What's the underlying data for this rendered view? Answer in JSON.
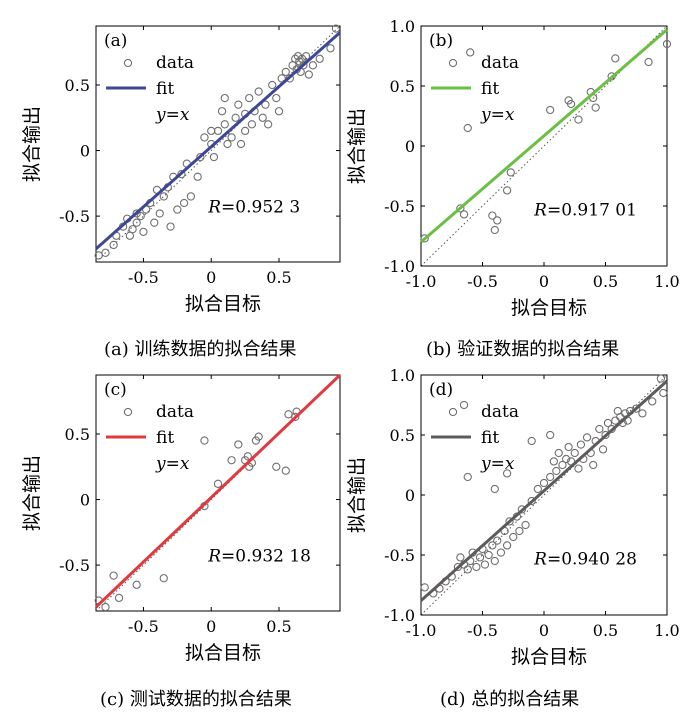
{
  "chart_data": [
    {
      "type": "scatter",
      "panel_label": "(a)",
      "caption": "(a) 训练数据的拟合结果",
      "xlabel": "拟合目标",
      "ylabel": "拟合输出",
      "xlim": [
        -0.85,
        0.95
      ],
      "ylim": [
        -0.85,
        0.95
      ],
      "xticks": [
        "-0.5",
        "0",
        "0.5"
      ],
      "yticks": [
        "-0.5",
        "0",
        "0.5"
      ],
      "xtick_values": [
        -0.5,
        0,
        0.5
      ],
      "ytick_values": [
        -0.5,
        0,
        0.5
      ],
      "fit_color": "#3d4796",
      "fit_line": [
        [
          -0.85,
          -0.75
        ],
        [
          0.95,
          0.9
        ]
      ],
      "legend": [
        "data",
        "fit",
        "y=x"
      ],
      "r_label": "R",
      "r_value": "=0.952 3",
      "points": [
        [
          -0.83,
          -0.8
        ],
        [
          -0.78,
          -0.78
        ],
        [
          -0.72,
          -0.72
        ],
        [
          -0.7,
          -0.65
        ],
        [
          -0.65,
          -0.58
        ],
        [
          -0.62,
          -0.52
        ],
        [
          -0.58,
          -0.6
        ],
        [
          -0.55,
          -0.55
        ],
        [
          -0.52,
          -0.5
        ],
        [
          -0.5,
          -0.62
        ],
        [
          -0.48,
          -0.45
        ],
        [
          -0.45,
          -0.4
        ],
        [
          -0.42,
          -0.55
        ],
        [
          -0.4,
          -0.3
        ],
        [
          -0.38,
          -0.48
        ],
        [
          -0.35,
          -0.35
        ],
        [
          -0.32,
          -0.28
        ],
        [
          -0.3,
          -0.58
        ],
        [
          -0.28,
          -0.2
        ],
        [
          -0.25,
          -0.45
        ],
        [
          -0.22,
          -0.18
        ],
        [
          -0.2,
          -0.4
        ],
        [
          -0.18,
          -0.1
        ],
        [
          -0.15,
          -0.35
        ],
        [
          -0.1,
          -0.2
        ],
        [
          -0.08,
          -0.05
        ],
        [
          -0.05,
          0.1
        ],
        [
          0,
          0.05
        ],
        [
          0.02,
          -0.05
        ],
        [
          0.05,
          0.15
        ],
        [
          0.08,
          0.3
        ],
        [
          0.1,
          0.2
        ],
        [
          0.12,
          0.05
        ],
        [
          0.15,
          0.1
        ],
        [
          0.18,
          0.25
        ],
        [
          0.2,
          0.35
        ],
        [
          0.22,
          0.05
        ],
        [
          0.25,
          0.28
        ],
        [
          0.28,
          0.4
        ],
        [
          0.3,
          0.2
        ],
        [
          0.32,
          0.3
        ],
        [
          0.35,
          0.45
        ],
        [
          0.38,
          0.25
        ],
        [
          0.4,
          0.35
        ],
        [
          0.42,
          0.2
        ],
        [
          0.45,
          0.5
        ],
        [
          0.48,
          0.4
        ],
        [
          0.5,
          0.3
        ],
        [
          0.52,
          0.55
        ],
        [
          0.55,
          0.6
        ],
        [
          0.58,
          0.55
        ],
        [
          0.6,
          0.65
        ],
        [
          0.62,
          0.7
        ],
        [
          0.63,
          0.62
        ],
        [
          0.64,
          0.72
        ],
        [
          0.65,
          0.68
        ],
        [
          0.66,
          0.6
        ],
        [
          0.67,
          0.7
        ],
        [
          0.68,
          0.65
        ],
        [
          0.7,
          0.72
        ],
        [
          0.72,
          0.58
        ],
        [
          0.75,
          0.65
        ],
        [
          0.8,
          0.7
        ],
        [
          0.88,
          0.78
        ],
        [
          0.92,
          0.93
        ],
        [
          -0.6,
          -0.65
        ],
        [
          -0.55,
          -0.48
        ],
        [
          0.0,
          0.15
        ],
        [
          0.1,
          0.4
        ],
        [
          0.25,
          0.15
        ]
      ]
    },
    {
      "type": "scatter",
      "panel_label": "(b)",
      "caption": "(b) 验证数据的拟合结果",
      "xlabel": "拟合目标",
      "ylabel": "拟合输出",
      "xlim": [
        -1,
        1
      ],
      "ylim": [
        -1,
        1
      ],
      "xticks": [
        "-1.0",
        "-0.5",
        "0",
        "0.5",
        "1.0"
      ],
      "yticks": [
        "-1.0",
        "-0.5",
        "0",
        "0.5",
        "1.0"
      ],
      "xtick_values": [
        -1,
        -0.5,
        0,
        0.5,
        1
      ],
      "ytick_values": [
        -1,
        -0.5,
        0,
        0.5,
        1
      ],
      "fit_color": "#6abf45",
      "fit_line": [
        [
          -1,
          -0.8
        ],
        [
          1,
          0.97
        ]
      ],
      "legend": [
        "data",
        "fit",
        "y=x"
      ],
      "r_label": "R",
      "r_value": "=0.917 01",
      "points": [
        [
          -0.97,
          -0.77
        ],
        [
          -0.68,
          -0.52
        ],
        [
          -0.65,
          -0.57
        ],
        [
          -0.62,
          0.15
        ],
        [
          -0.6,
          0.78
        ],
        [
          -0.42,
          -0.58
        ],
        [
          -0.4,
          -0.7
        ],
        [
          -0.38,
          -0.62
        ],
        [
          -0.3,
          -0.37
        ],
        [
          -0.27,
          -0.22
        ],
        [
          0.05,
          0.3
        ],
        [
          0.2,
          0.38
        ],
        [
          0.22,
          0.35
        ],
        [
          0.28,
          0.22
        ],
        [
          0.38,
          0.45
        ],
        [
          0.42,
          0.32
        ],
        [
          0.55,
          0.58
        ],
        [
          0.58,
          0.73
        ],
        [
          0.85,
          0.7
        ],
        [
          1.0,
          0.85
        ],
        [
          0.4,
          0.4
        ]
      ]
    },
    {
      "type": "scatter",
      "panel_label": "(c)",
      "caption": "(c) 测试数据的拟合结果",
      "xlabel": "拟合目标",
      "ylabel": "拟合输出",
      "xlim": [
        -0.85,
        0.95
      ],
      "ylim": [
        -0.85,
        0.95
      ],
      "xticks": [
        "-0.5",
        "0",
        "0.5"
      ],
      "yticks": [
        "-0.5",
        "0",
        "0.5"
      ],
      "xtick_values": [
        -0.5,
        0,
        0.5
      ],
      "ytick_values": [
        -0.5,
        0,
        0.5
      ],
      "fit_color": "#e0393e",
      "fit_line": [
        [
          -0.85,
          -0.82
        ],
        [
          0.95,
          0.95
        ]
      ],
      "legend": [
        "data",
        "fit",
        "y=x"
      ],
      "r_label": "R",
      "r_value": "=0.932 18",
      "points": [
        [
          -0.83,
          -0.77
        ],
        [
          -0.78,
          -0.82
        ],
        [
          -0.72,
          -0.58
        ],
        [
          -0.68,
          -0.75
        ],
        [
          -0.55,
          -0.65
        ],
        [
          -0.35,
          -0.6
        ],
        [
          -0.05,
          -0.05
        ],
        [
          0.05,
          0.12
        ],
        [
          0.15,
          0.3
        ],
        [
          0.2,
          0.42
        ],
        [
          0.25,
          0.3
        ],
        [
          0.27,
          0.33
        ],
        [
          0.28,
          0.25
        ],
        [
          0.3,
          0.28
        ],
        [
          0.33,
          0.45
        ],
        [
          0.35,
          0.48
        ],
        [
          0.48,
          0.25
        ],
        [
          0.55,
          0.22
        ],
        [
          0.57,
          0.65
        ],
        [
          0.62,
          0.63
        ],
        [
          0.63,
          0.67
        ],
        [
          -0.05,
          0.45
        ]
      ]
    },
    {
      "type": "scatter",
      "panel_label": "(d)",
      "caption": "(d) 总的拟合结果",
      "xlabel": "拟合目标",
      "ylabel": "拟合输出",
      "xlim": [
        -1,
        1
      ],
      "ylim": [
        -1,
        1
      ],
      "xticks": [
        "-1.0",
        "-0.5",
        "0",
        "0.5",
        "1.0"
      ],
      "yticks": [
        "-1.0",
        "-0.5",
        "0",
        "0.5",
        "1.0"
      ],
      "xtick_values": [
        -1,
        -0.5,
        0,
        0.5,
        1
      ],
      "ytick_values": [
        -1,
        -0.5,
        0,
        0.5,
        1
      ],
      "fit_color": "#5f5a5c",
      "fit_line": [
        [
          -1,
          -0.88
        ],
        [
          1,
          0.95
        ]
      ],
      "legend": [
        "data",
        "fit",
        "y=x"
      ],
      "r_label": "R",
      "r_value": "=0.940 28",
      "points": [
        [
          -0.97,
          -0.77
        ],
        [
          -0.9,
          -0.82
        ],
        [
          -0.85,
          -0.78
        ],
        [
          -0.8,
          -0.72
        ],
        [
          -0.75,
          -0.68
        ],
        [
          -0.7,
          -0.6
        ],
        [
          -0.68,
          -0.52
        ],
        [
          -0.65,
          -0.58
        ],
        [
          -0.62,
          -0.62
        ],
        [
          -0.6,
          -0.55
        ],
        [
          -0.58,
          -0.48
        ],
        [
          -0.55,
          -0.6
        ],
        [
          -0.52,
          -0.52
        ],
        [
          -0.5,
          -0.45
        ],
        [
          -0.48,
          -0.58
        ],
        [
          -0.45,
          -0.5
        ],
        [
          -0.42,
          -0.42
        ],
        [
          -0.4,
          -0.55
        ],
        [
          -0.38,
          -0.38
        ],
        [
          -0.35,
          -0.48
        ],
        [
          -0.32,
          -0.3
        ],
        [
          -0.3,
          -0.42
        ],
        [
          -0.28,
          -0.22
        ],
        [
          -0.25,
          -0.35
        ],
        [
          -0.22,
          -0.18
        ],
        [
          -0.2,
          -0.3
        ],
        [
          -0.18,
          -0.12
        ],
        [
          -0.15,
          -0.25
        ],
        [
          -0.1,
          -0.05
        ],
        [
          -0.05,
          0.05
        ],
        [
          0,
          0.1
        ],
        [
          0.05,
          0.15
        ],
        [
          0.08,
          0.28
        ],
        [
          0.1,
          0.2
        ],
        [
          0.12,
          0.35
        ],
        [
          0.15,
          0.25
        ],
        [
          0.18,
          0.3
        ],
        [
          0.2,
          0.4
        ],
        [
          0.22,
          0.28
        ],
        [
          0.25,
          0.35
        ],
        [
          0.28,
          0.22
        ],
        [
          0.3,
          0.42
        ],
        [
          0.32,
          0.3
        ],
        [
          0.35,
          0.48
        ],
        [
          0.38,
          0.35
        ],
        [
          0.4,
          0.25
        ],
        [
          0.42,
          0.45
        ],
        [
          0.45,
          0.55
        ],
        [
          0.48,
          0.38
        ],
        [
          0.5,
          0.5
        ],
        [
          0.52,
          0.6
        ],
        [
          0.55,
          0.55
        ],
        [
          0.58,
          0.62
        ],
        [
          0.6,
          0.7
        ],
        [
          0.62,
          0.65
        ],
        [
          0.64,
          0.6
        ],
        [
          0.66,
          0.68
        ],
        [
          0.68,
          0.62
        ],
        [
          0.7,
          0.7
        ],
        [
          0.75,
          0.72
        ],
        [
          0.8,
          0.68
        ],
        [
          0.88,
          0.78
        ],
        [
          0.95,
          0.97
        ],
        [
          0.97,
          0.85
        ],
        [
          -0.65,
          0.75
        ],
        [
          -0.62,
          0.15
        ],
        [
          -0.1,
          0.45
        ],
        [
          0.05,
          0.5
        ],
        [
          -0.4,
          0.05
        ],
        [
          -0.3,
          0.18
        ]
      ]
    }
  ]
}
